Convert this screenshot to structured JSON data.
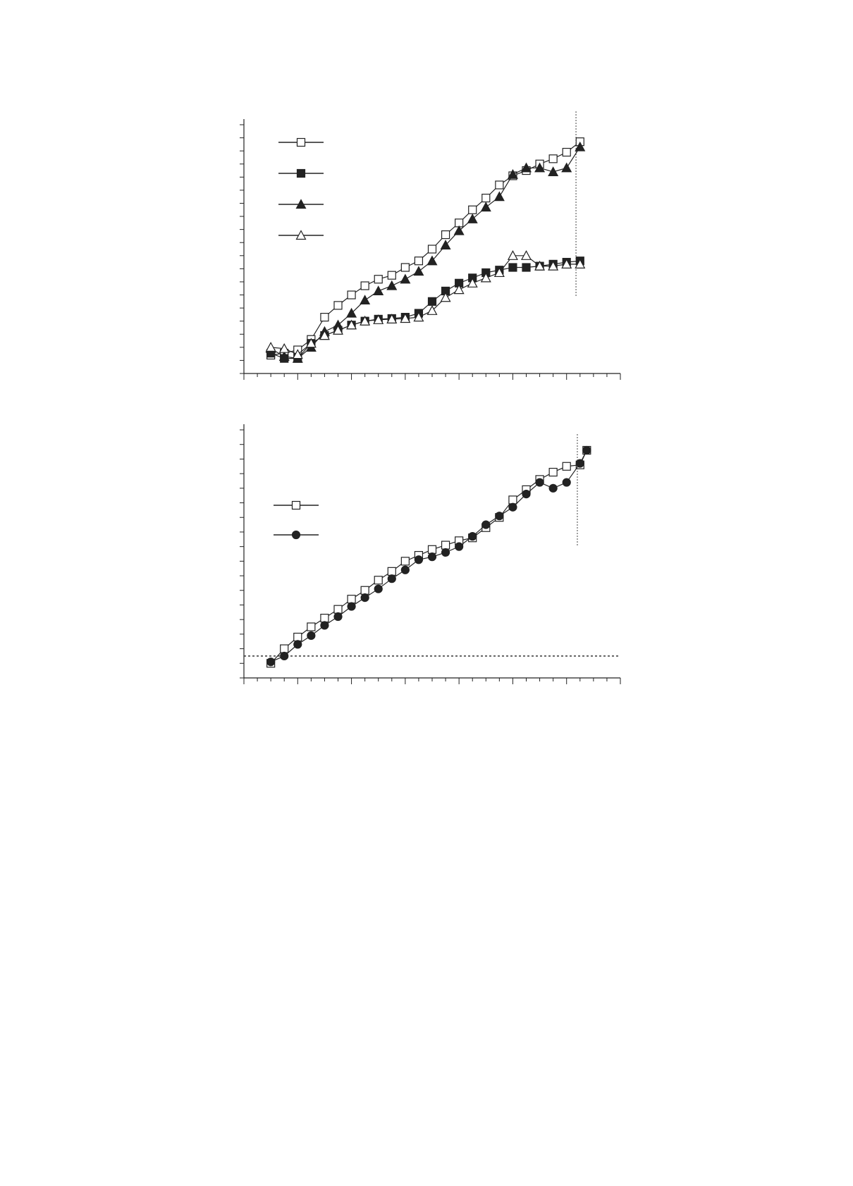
{
  "chart_data": [
    {
      "type": "line",
      "xlim": [
        0,
        28
      ],
      "xticks": [
        0,
        1,
        2,
        3,
        4,
        5,
        6,
        7,
        8,
        9,
        10,
        11,
        12,
        13,
        14,
        15,
        16,
        17,
        18,
        19,
        20,
        21,
        22,
        23,
        24,
        25,
        26,
        27,
        28
      ],
      "ylim": [
        0,
        19
      ],
      "yticks": [
        0,
        1,
        2,
        3,
        4,
        5,
        6,
        7,
        8,
        9,
        10,
        11,
        12,
        13,
        14,
        15,
        16,
        17,
        18,
        19
      ],
      "x": [
        2,
        3,
        4,
        5,
        6,
        7,
        8,
        9,
        10,
        11,
        12,
        13,
        14,
        15,
        16,
        17,
        18,
        19,
        20,
        21,
        22,
        23,
        24,
        25
      ],
      "vline_x": 24.7,
      "series": [
        {
          "marker": "square-open",
          "color": "#222",
          "values": [
            1.4,
            1.55,
            1.8,
            2.6,
            4.3,
            5.2,
            6.0,
            6.7,
            7.2,
            7.5,
            8.1,
            8.6,
            9.5,
            10.6,
            11.5,
            12.5,
            13.4,
            14.4,
            15.1,
            15.5,
            16.0,
            16.4,
            16.9,
            17.7
          ]
        },
        {
          "marker": "square-filled",
          "color": "#222",
          "values": [
            1.55,
            1.15,
            1.15,
            2.3,
            2.9,
            3.3,
            3.7,
            4.0,
            4.15,
            4.2,
            4.3,
            4.6,
            5.5,
            6.3,
            6.9,
            7.3,
            7.7,
            7.9,
            8.1,
            8.1,
            8.2,
            8.35,
            8.5,
            8.6
          ]
        },
        {
          "marker": "triangle-filled",
          "color": "#222",
          "values": [
            1.9,
            1.3,
            1.15,
            2.0,
            3.2,
            3.7,
            4.6,
            5.6,
            6.3,
            6.7,
            7.2,
            7.8,
            8.6,
            9.8,
            10.9,
            11.8,
            12.7,
            13.5,
            15.2,
            15.7,
            15.7,
            15.4,
            15.7,
            17.3
          ]
        },
        {
          "marker": "triangle-open",
          "color": "#222",
          "values": [
            2.0,
            1.9,
            1.45,
            2.3,
            2.9,
            3.3,
            3.7,
            4.0,
            4.1,
            4.15,
            4.2,
            4.3,
            4.8,
            5.8,
            6.4,
            6.9,
            7.3,
            7.7,
            9.0,
            9.0,
            8.2,
            8.2,
            8.35,
            8.35
          ]
        }
      ]
    },
    {
      "type": "line",
      "xlim": [
        0,
        28
      ],
      "xticks": [
        0,
        1,
        2,
        3,
        4,
        5,
        6,
        7,
        8,
        9,
        10,
        11,
        12,
        13,
        14,
        15,
        16,
        17,
        18,
        19,
        20,
        21,
        22,
        23,
        24,
        25,
        26,
        27,
        28
      ],
      "ylim": [
        0,
        17
      ],
      "yticks": [
        0,
        1,
        2,
        3,
        4,
        5,
        6,
        7,
        8,
        9,
        10,
        11,
        12,
        13,
        14,
        15,
        16,
        17
      ],
      "x": [
        2,
        3,
        4,
        5,
        6,
        7,
        8,
        9,
        10,
        11,
        12,
        13,
        14,
        15,
        16,
        17,
        18,
        19,
        20,
        21,
        22,
        23,
        24,
        25,
        25.5
      ],
      "vline_x": 24.8,
      "hline_y": 1.5,
      "series": [
        {
          "marker": "square-open",
          "color": "#222",
          "values": [
            1.0,
            2.0,
            2.8,
            3.5,
            4.1,
            4.7,
            5.4,
            6.0,
            6.7,
            7.3,
            8.0,
            8.4,
            8.8,
            9.1,
            9.4,
            9.6,
            10.3,
            11.0,
            12.2,
            12.9,
            13.6,
            14.1,
            14.5,
            14.6,
            15.6
          ]
        },
        {
          "marker": "circle-filled",
          "color": "#222",
          "values": [
            1.1,
            1.5,
            2.3,
            2.9,
            3.6,
            4.2,
            4.9,
            5.5,
            6.1,
            6.8,
            7.4,
            8.1,
            8.3,
            8.6,
            9.0,
            9.7,
            10.5,
            11.1,
            11.7,
            12.6,
            13.4,
            13.0,
            13.4,
            14.7,
            15.6
          ]
        }
      ]
    }
  ]
}
